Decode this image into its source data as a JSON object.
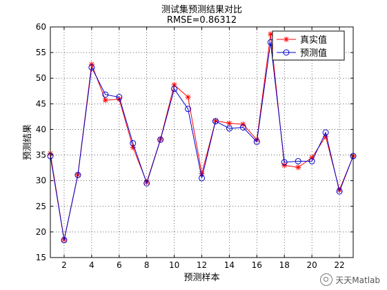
{
  "chart_data": {
    "type": "line",
    "title": "测试集预测结果对比",
    "subtitle": "RMSE=0.86312",
    "xlabel": "预测样本",
    "ylabel": "预测结果",
    "xlim": [
      1,
      23
    ],
    "ylim": [
      15,
      60
    ],
    "xticks": [
      2,
      4,
      6,
      8,
      10,
      12,
      14,
      16,
      18,
      20,
      22
    ],
    "yticks": [
      15,
      20,
      25,
      30,
      35,
      40,
      45,
      50,
      55,
      60
    ],
    "grid": true,
    "legend_position": "top-right",
    "x": [
      1,
      2,
      3,
      4,
      5,
      6,
      7,
      8,
      9,
      10,
      11,
      12,
      13,
      14,
      15,
      16,
      17,
      18,
      19,
      20,
      21,
      22,
      23
    ],
    "series": [
      {
        "name": "真实值",
        "color": "#ff0000",
        "marker": "asterisk",
        "values": [
          35.3,
          18.5,
          31.2,
          52.7,
          45.7,
          45.9,
          36.5,
          29.7,
          38.1,
          48.7,
          46.3,
          31.4,
          41.7,
          41.2,
          41.0,
          38.0,
          58.6,
          33.0,
          32.6,
          34.5,
          38.6,
          28.2,
          34.8
        ]
      },
      {
        "name": "预测值",
        "color": "#0000cc",
        "marker": "circle",
        "values": [
          34.8,
          18.4,
          31.1,
          52.1,
          46.8,
          46.3,
          37.3,
          29.5,
          38.0,
          47.9,
          44.0,
          30.5,
          41.6,
          40.2,
          40.4,
          37.6,
          57.0,
          33.6,
          33.8,
          33.8,
          39.4,
          27.9,
          34.8
        ]
      }
    ]
  },
  "watermark": {
    "text": "天天Matlab",
    "icon": "wechat-icon"
  }
}
